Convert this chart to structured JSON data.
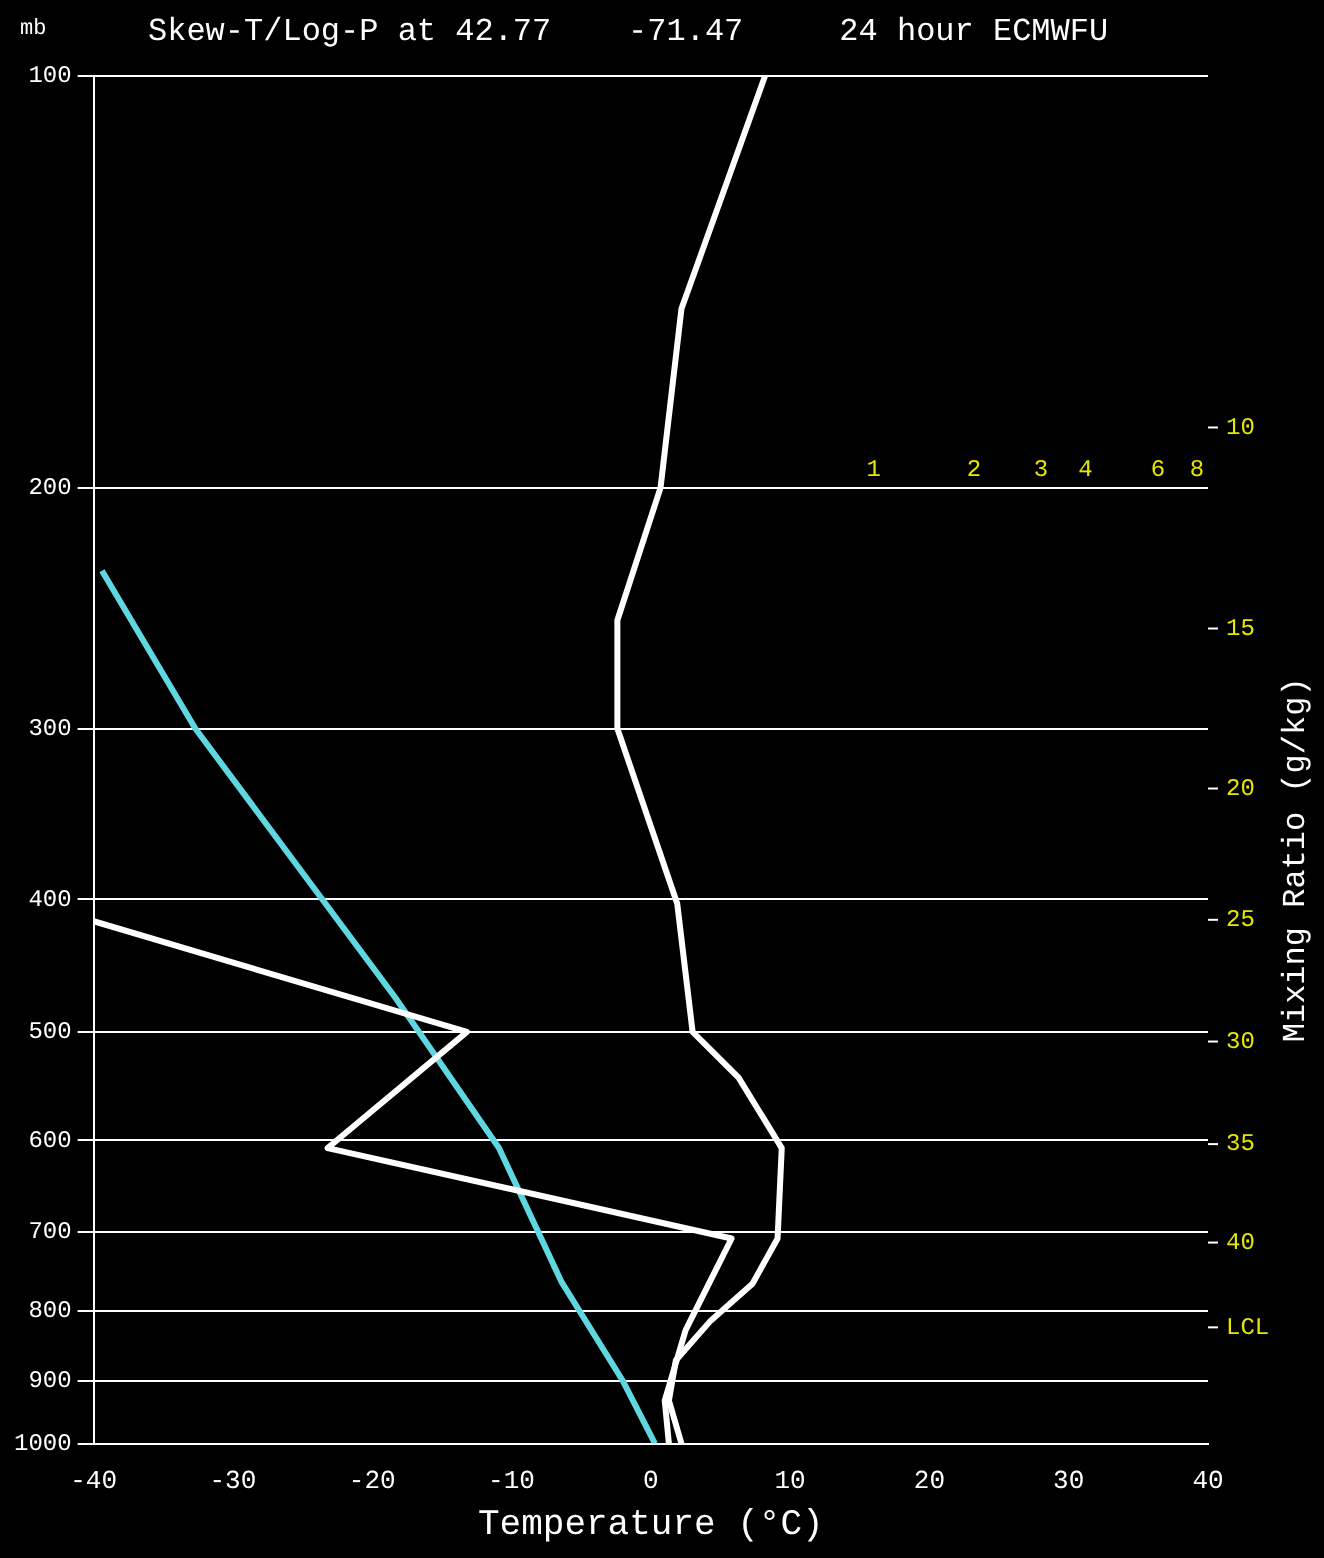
{
  "chart_data": {
    "type": "line",
    "title": "Skew-T/Log-P at 42.77    -71.47     24 hour ECMWFU",
    "ylabel": "mb",
    "xlabel": "Temperature (°C)",
    "y2label": "Mixing Ratio (g/kg)",
    "xlim": [
      -40,
      40
    ],
    "xticks": [
      -40,
      -30,
      -20,
      -10,
      0,
      10,
      20,
      30,
      40
    ],
    "ylim": [
      1000,
      100
    ],
    "yticks": [
      100,
      200,
      300,
      400,
      500,
      600,
      700,
      800,
      900,
      1000
    ],
    "log": "y",
    "grid": "y",
    "legend": false,
    "marker": "none",
    "line_style": "solid",
    "series": [
      {
        "color": "#ffffff",
        "x": [
          8.2,
          2.2,
          0.7,
          -2.4,
          -2.4,
          1.9,
          3.0,
          6.3,
          9.4,
          9.1,
          7.3,
          4.3,
          1.8,
          1.3,
          2.2
        ],
        "values": [
          100,
          148,
          200,
          250,
          300,
          403,
          500,
          540,
          608,
          708,
          764,
          813,
          869,
          930,
          1000
        ]
      },
      {
        "color": "#ffffff",
        "x": [
          -40,
          -13.2,
          -23.2,
          5.8,
          2.5,
          1.0,
          1.3
        ],
        "values": [
          415,
          500,
          608,
          708,
          826,
          930,
          1000
        ]
      },
      {
        "color": "#5fd7e0",
        "x": [
          -39.4,
          -32.7,
          -18.4,
          -10.9,
          -6.4,
          -2.0,
          0.3
        ],
        "values": [
          230,
          300,
          471,
          608,
          762,
          900,
          1000
        ]
      }
    ],
    "annotations": [
      "1",
      "2",
      "3",
      "4",
      "6",
      "8",
      "10",
      "15",
      "20",
      "25",
      "30",
      "35",
      "40",
      "LCL"
    ]
  }
}
